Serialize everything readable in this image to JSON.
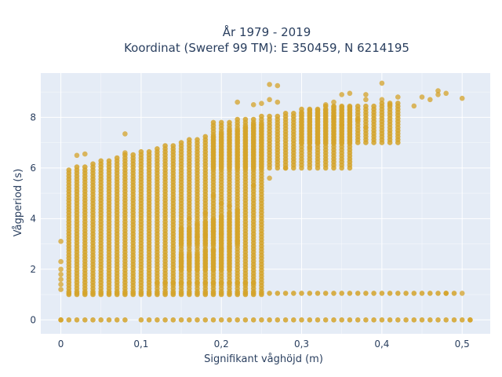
{
  "chart_data": {
    "type": "scatter",
    "title": "År 1979 - 2019",
    "subtitle": "Koordinat (Sweref 99 TM): E 350459, N 6214195",
    "xlabel": "Signifikant våghöjd (m)",
    "ylabel": "Vågperiod (s)",
    "xlim": [
      -0.025,
      0.535
    ],
    "ylim": [
      -0.55,
      9.75
    ],
    "x_ticks": [
      0,
      0.1,
      0.2,
      0.3,
      0.4,
      0.5
    ],
    "x_tick_labels": [
      "0",
      "0,1",
      "0,2",
      "0,3",
      "0,4",
      "0,5"
    ],
    "y_ticks": [
      0,
      2,
      4,
      6,
      8
    ],
    "y_tick_labels": [
      "0",
      "2",
      "4",
      "6",
      "8"
    ],
    "grid": true,
    "legend": "none",
    "marker_color": "#d4a32a",
    "background_color": "#e5ecf6",
    "bands": [
      {
        "x_from": 0.01,
        "x_to": 0.25,
        "y_from": 1.0,
        "y_to_start": 6.0,
        "y_to_end": 7.8
      },
      {
        "x_from": 0.19,
        "x_to": 0.36,
        "y_from": 6.0,
        "y_to_start": 7.8,
        "y_to_end": 8.5
      },
      {
        "x_from": 0.3,
        "x_to": 0.42,
        "y_from": 7.0,
        "y_to_start": 8.4,
        "y_to_end": 8.6
      },
      {
        "x_from": 0.15,
        "x_to": 0.22,
        "y_from": 3.0,
        "y_to_start": 3.6,
        "y_to_end": 4.4
      },
      {
        "x_from": 0.15,
        "x_to": 0.21,
        "y_from": 2.0,
        "y_to_start": 2.6,
        "y_to_end": 2.9
      }
    ],
    "rows": [
      {
        "y": 1.05,
        "x_from": 0.01,
        "x_to": 0.49
      },
      {
        "y": 1.45,
        "x_from": 0.12,
        "x_to": 0.24
      }
    ],
    "zero_row": {
      "y": 0,
      "x_from": 0.0,
      "x_to": 0.51
    },
    "points": [
      [
        0,
        3.1
      ],
      [
        0,
        2.3
      ],
      [
        0,
        2.0
      ],
      [
        0,
        1.8
      ],
      [
        0,
        1.6
      ],
      [
        0,
        1.4
      ],
      [
        0,
        1.2
      ],
      [
        0,
        0
      ],
      [
        0.08,
        7.35
      ],
      [
        0.08,
        6.6
      ],
      [
        0.02,
        6.5
      ],
      [
        0.03,
        6.55
      ],
      [
        0.26,
        9.3
      ],
      [
        0.27,
        9.25
      ],
      [
        0.26,
        8.7
      ],
      [
        0.27,
        8.6
      ],
      [
        0.22,
        8.6
      ],
      [
        0.24,
        8.5
      ],
      [
        0.25,
        8.55
      ],
      [
        0.33,
        8.5
      ],
      [
        0.34,
        8.6
      ],
      [
        0.35,
        8.9
      ],
      [
        0.36,
        8.95
      ],
      [
        0.38,
        8.7
      ],
      [
        0.38,
        8.9
      ],
      [
        0.4,
        9.35
      ],
      [
        0.4,
        8.7
      ],
      [
        0.41,
        8.5
      ],
      [
        0.42,
        8.8
      ],
      [
        0.44,
        8.45
      ],
      [
        0.45,
        8.8
      ],
      [
        0.46,
        8.7
      ],
      [
        0.47,
        9.05
      ],
      [
        0.47,
        8.9
      ],
      [
        0.48,
        8.95
      ],
      [
        0.5,
        8.75
      ],
      [
        0.38,
        7.6
      ],
      [
        0.37,
        7.9
      ],
      [
        0.35,
        7.7
      ],
      [
        0.34,
        8.0
      ],
      [
        0.32,
        7.0
      ],
      [
        0.31,
        6.8
      ],
      [
        0.28,
        6.0
      ],
      [
        0.26,
        5.6
      ],
      [
        0.24,
        5.3
      ],
      [
        0.2,
        4.6
      ],
      [
        0.21,
        4.5
      ],
      [
        0.19,
        4.9
      ],
      [
        0.16,
        4.0
      ],
      [
        0.17,
        3.8
      ],
      [
        0.19,
        3.5
      ],
      [
        0.2,
        3.4
      ],
      [
        0.18,
        3.35
      ],
      [
        0.17,
        3.3
      ],
      [
        0.18,
        4.2
      ],
      [
        0.21,
        2.9
      ],
      [
        0.22,
        3.1
      ],
      [
        0.2,
        2.8
      ],
      [
        0.19,
        2.75
      ],
      [
        0.16,
        2.5
      ],
      [
        0.15,
        2.3
      ],
      [
        0.15,
        2.1
      ],
      [
        0.48,
        1.05
      ],
      [
        0.5,
        1.05
      ],
      [
        0.51,
        0
      ]
    ]
  }
}
